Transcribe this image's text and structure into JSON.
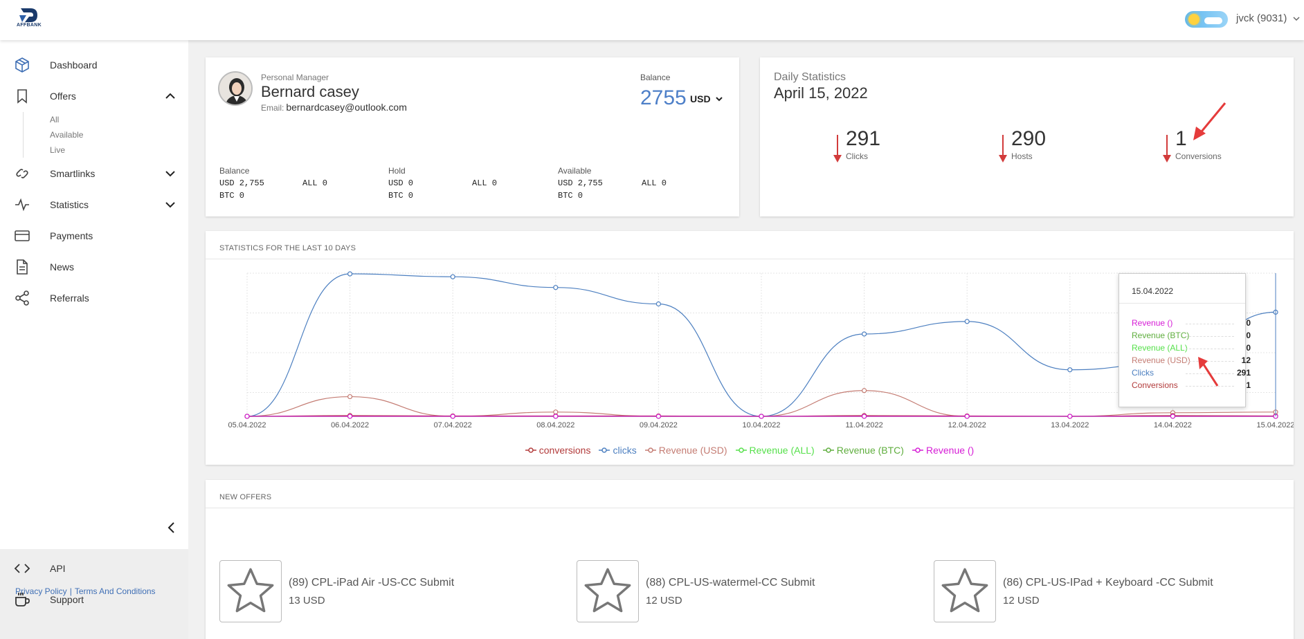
{
  "header": {
    "logo_text": "AFFBANK",
    "user_label": "jvck (9031)"
  },
  "sidebar": {
    "items": [
      {
        "label": "Dashboard",
        "icon": "cube-icon"
      },
      {
        "label": "Offers",
        "icon": "bookmark-icon"
      },
      {
        "label": "Smartlinks",
        "icon": "link-icon"
      },
      {
        "label": "Statistics",
        "icon": "pulse-icon"
      },
      {
        "label": "Payments",
        "icon": "card-icon"
      },
      {
        "label": "News",
        "icon": "document-icon"
      },
      {
        "label": "Referrals",
        "icon": "share-icon"
      }
    ],
    "offers_sub": [
      "All",
      "Available",
      "Live"
    ],
    "bottom_items": [
      {
        "label": "API",
        "icon": "code-icon"
      },
      {
        "label": "Support",
        "icon": "coffee-icon"
      }
    ],
    "privacy": "Privacy Policy",
    "separator": "|",
    "terms": "Terms And Conditions"
  },
  "manager": {
    "label": "Personal Manager",
    "name": "Bernard casey",
    "email_label": "Email:",
    "email": "bernardcasey@outlook.com",
    "balance_label": "Balance",
    "balance_value": "2755",
    "balance_currency": "USD",
    "columns": [
      {
        "title": "Balance",
        "rows": [
          "USD 2,755",
          "BTC 0"
        ],
        "all": "ALL 0"
      },
      {
        "title": "Hold",
        "rows": [
          "USD 0",
          "BTC 0"
        ],
        "all": "ALL 0"
      },
      {
        "title": "Available",
        "rows": [
          "USD 2,755",
          "BTC 0"
        ],
        "all": "ALL 0"
      }
    ]
  },
  "daily": {
    "label": "Daily Statistics",
    "date": "April 15, 2022",
    "stats": [
      {
        "value": "291",
        "label": "Clicks"
      },
      {
        "value": "290",
        "label": "Hosts"
      },
      {
        "value": "1",
        "label": "Conversions"
      }
    ]
  },
  "stats_title": "STATISTICS FOR THE LAST 10 DAYS",
  "tooltip": {
    "date": "15.04.2022",
    "rows": [
      {
        "name": "Revenue ()",
        "value": "0",
        "color": "#d61cd6"
      },
      {
        "name": "Revenue (BTC)",
        "value": "0",
        "color": "#5fae3e"
      },
      {
        "name": "Revenue (ALL)",
        "value": "0",
        "color": "#55e04a"
      },
      {
        "name": "Revenue (USD)",
        "value": "12",
        "color": "#c47c73"
      },
      {
        "name": "Clicks",
        "value": "291",
        "color": "#4c7fc0"
      },
      {
        "name": "Conversions",
        "value": "1",
        "color": "#b23b3b"
      }
    ]
  },
  "chart_data": {
    "type": "line",
    "x": [
      "05.04.2022",
      "06.04.2022",
      "07.04.2022",
      "08.04.2022",
      "09.04.2022",
      "10.04.2022",
      "11.04.2022",
      "12.04.2022",
      "13.04.2022",
      "14.04.2022",
      "15.04.2022"
    ],
    "ylim": [
      0,
      400
    ],
    "grid": true,
    "legend": "bottom",
    "series": [
      {
        "name": "conversions",
        "color": "#b23b3b",
        "values": [
          0,
          2,
          1,
          1,
          1,
          0,
          2,
          1,
          0,
          2,
          1
        ]
      },
      {
        "name": "clicks",
        "color": "#4c7fc0",
        "values": [
          0,
          398,
          390,
          360,
          314,
          0,
          230,
          265,
          130,
          150,
          291
        ]
      },
      {
        "name": "Revenue (USD)",
        "color": "#c47c73",
        "values": [
          0,
          55,
          0,
          12,
          0,
          0,
          72,
          0,
          0,
          10,
          12
        ]
      },
      {
        "name": "Revenue (ALL)",
        "color": "#55e04a",
        "values": [
          0,
          0,
          0,
          0,
          0,
          0,
          0,
          0,
          0,
          0,
          0
        ]
      },
      {
        "name": "Revenue (BTC)",
        "color": "#5fae3e",
        "values": [
          0,
          0,
          0,
          0,
          0,
          0,
          0,
          0,
          0,
          0,
          0
        ]
      },
      {
        "name": "Revenue ()",
        "color": "#d61cd6",
        "values": [
          0,
          0,
          0,
          0,
          0,
          0,
          0,
          0,
          0,
          0,
          0
        ]
      }
    ]
  },
  "offers_title": "NEW OFFERS",
  "offers": [
    {
      "name": "(89) CPL-iPad Air -US-CC Submit",
      "price": "13 USD"
    },
    {
      "name": "(88) CPL-US-watermel-CC Submit",
      "price": "12 USD"
    },
    {
      "name": "(86) CPL-US-IPad + Keyboard -CC Submit",
      "price": "12 USD"
    }
  ]
}
